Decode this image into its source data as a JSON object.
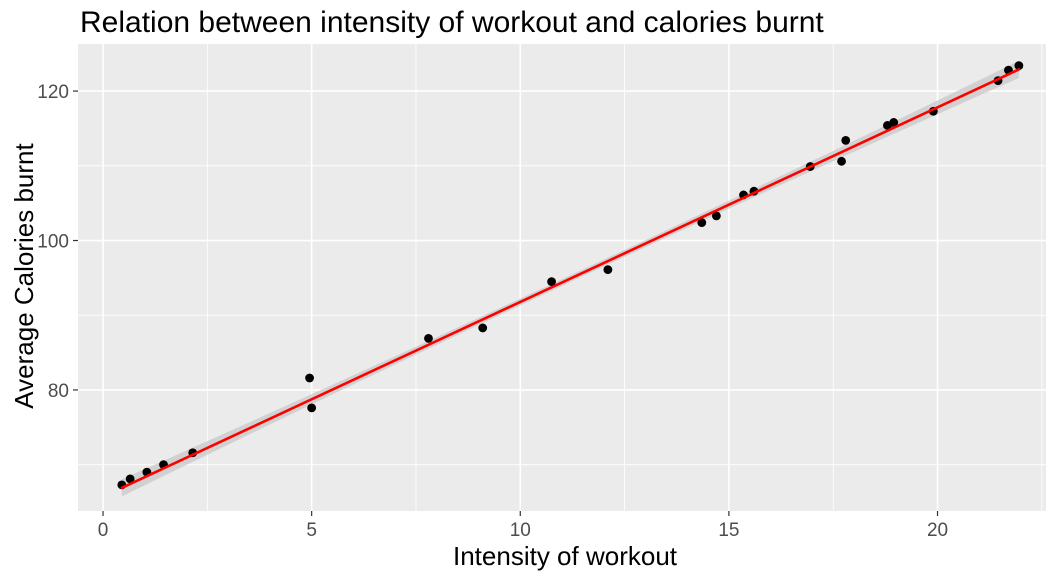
{
  "chart_data": {
    "type": "scatter",
    "title": "Relation between intensity of workout and calories burnt",
    "xlabel": "Intensity of workout",
    "ylabel": "Average Calories burnt",
    "xlim": [
      -0.6,
      22.6
    ],
    "ylim": [
      63.8,
      126.3
    ],
    "x_ticks": [
      0,
      5,
      10,
      15,
      20
    ],
    "x_tick_labels": [
      "0",
      "5",
      "10",
      "15",
      "20"
    ],
    "y_ticks": [
      80,
      100,
      120
    ],
    "y_tick_labels": [
      "80",
      "100",
      "120"
    ],
    "grid": true,
    "legend": "none",
    "points": [
      {
        "x": 0.45,
        "y": 67.3
      },
      {
        "x": 0.65,
        "y": 68.1
      },
      {
        "x": 1.05,
        "y": 69.0
      },
      {
        "x": 1.45,
        "y": 70.0
      },
      {
        "x": 2.15,
        "y": 71.6
      },
      {
        "x": 4.95,
        "y": 81.6
      },
      {
        "x": 5.0,
        "y": 77.6
      },
      {
        "x": 7.8,
        "y": 86.9
      },
      {
        "x": 9.1,
        "y": 88.3
      },
      {
        "x": 10.75,
        "y": 94.5
      },
      {
        "x": 12.1,
        "y": 96.1
      },
      {
        "x": 14.35,
        "y": 102.4
      },
      {
        "x": 14.7,
        "y": 103.3
      },
      {
        "x": 15.35,
        "y": 106.1
      },
      {
        "x": 15.6,
        "y": 106.6
      },
      {
        "x": 16.95,
        "y": 109.9
      },
      {
        "x": 17.7,
        "y": 110.6
      },
      {
        "x": 17.8,
        "y": 113.4
      },
      {
        "x": 18.8,
        "y": 115.4
      },
      {
        "x": 18.95,
        "y": 115.8
      },
      {
        "x": 19.9,
        "y": 117.3
      },
      {
        "x": 21.45,
        "y": 121.4
      },
      {
        "x": 21.7,
        "y": 122.8
      },
      {
        "x": 21.95,
        "y": 123.4
      }
    ],
    "fit_line": {
      "method": "linear",
      "x_range": [
        0.45,
        21.95
      ],
      "y_range": [
        66.9,
        122.9
      ],
      "confidence_band": true,
      "color": "#ff0000",
      "band_color": "#c8c8c8"
    },
    "colors": {
      "panel_background": "#ebebeb",
      "grid": "#ffffff",
      "points": "#000000"
    }
  }
}
